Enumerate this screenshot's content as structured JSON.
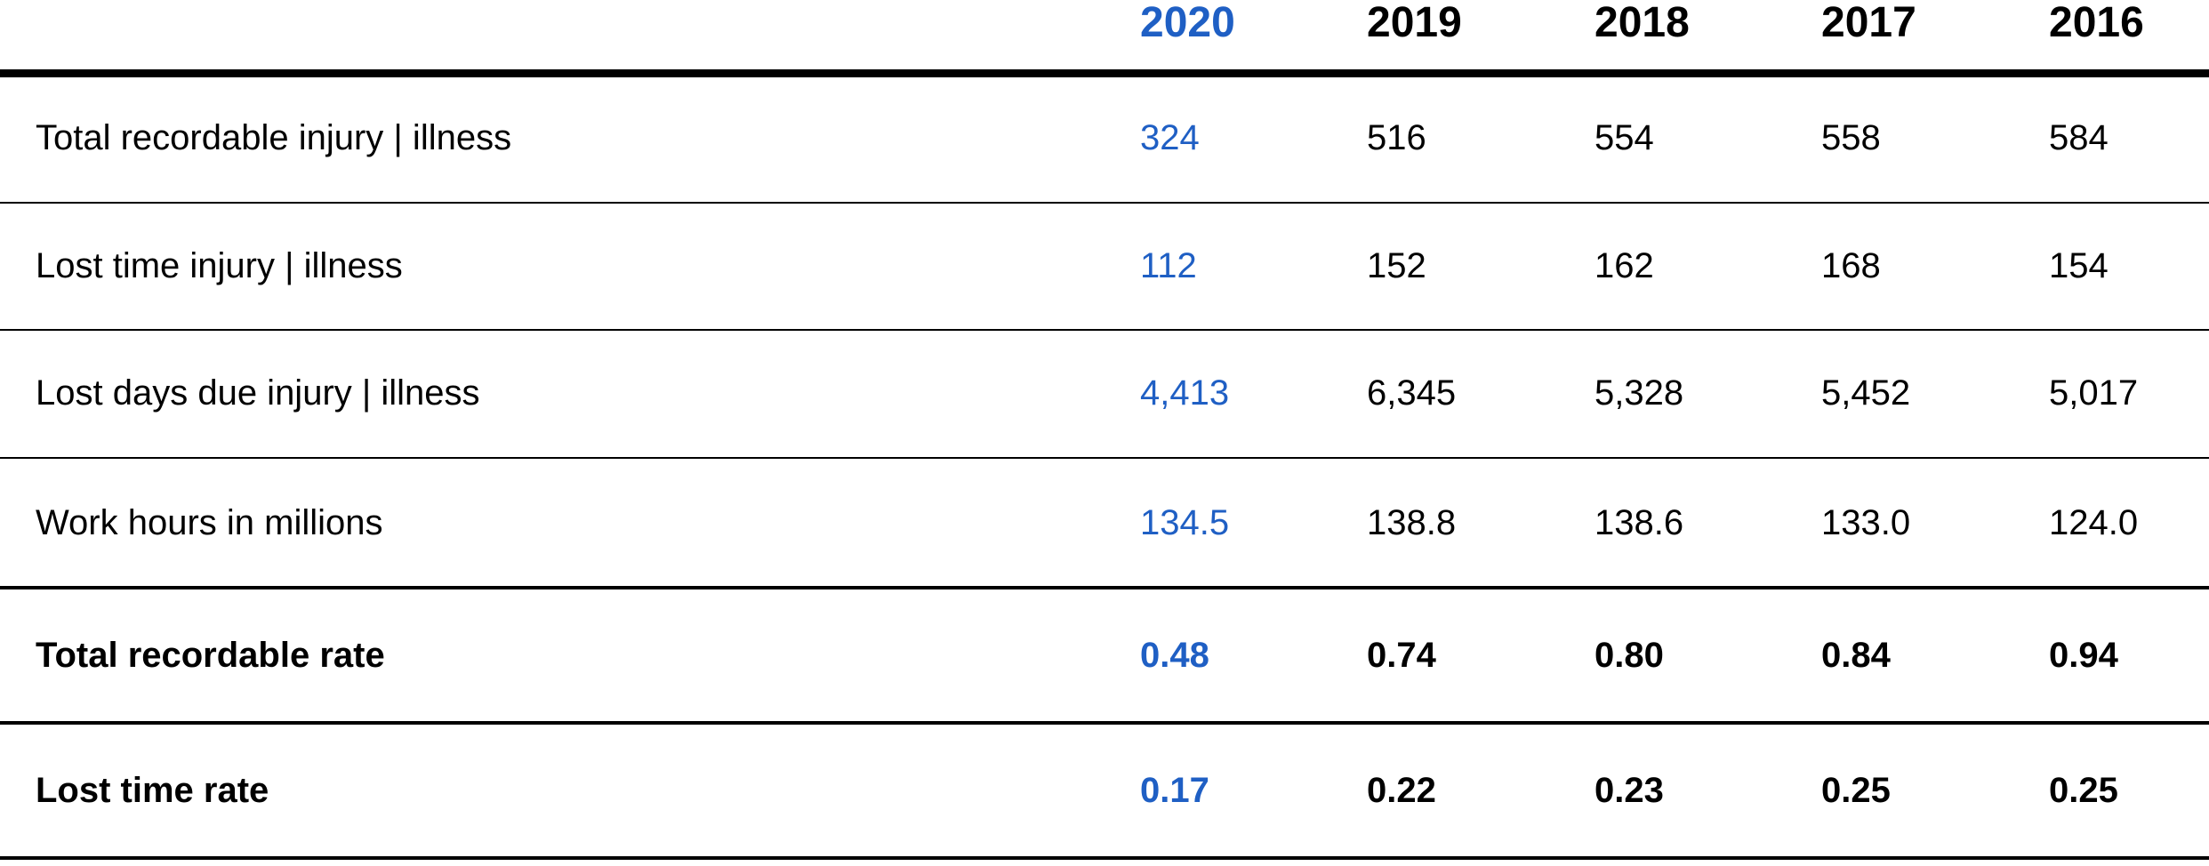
{
  "colors": {
    "highlight": "#1f5fc4",
    "text": "#000000",
    "rule": "#000000"
  },
  "header": {
    "years": [
      "2020",
      "2019",
      "2018",
      "2017",
      "2016"
    ]
  },
  "rows": [
    {
      "label": "Total recordable injury | illness",
      "values": [
        "324",
        "516",
        "554",
        "558",
        "584"
      ]
    },
    {
      "label": "Lost time injury | illness",
      "values": [
        "112",
        "152",
        "162",
        "168",
        "154"
      ]
    },
    {
      "label": "Lost days due injury | illness",
      "values": [
        "4,413",
        "6,345",
        "5,328",
        "5,452",
        "5,017"
      ]
    },
    {
      "label": "Work hours in millions",
      "values": [
        "134.5",
        "138.8",
        "138.6",
        "133.0",
        "124.0"
      ]
    },
    {
      "label": "Total recordable rate",
      "values": [
        "0.48",
        "0.74",
        "0.80",
        "0.84",
        "0.94"
      ]
    },
    {
      "label": "Lost time rate",
      "values": [
        "0.17",
        "0.22",
        "0.23",
        "0.25",
        "0.25"
      ]
    }
  ]
}
